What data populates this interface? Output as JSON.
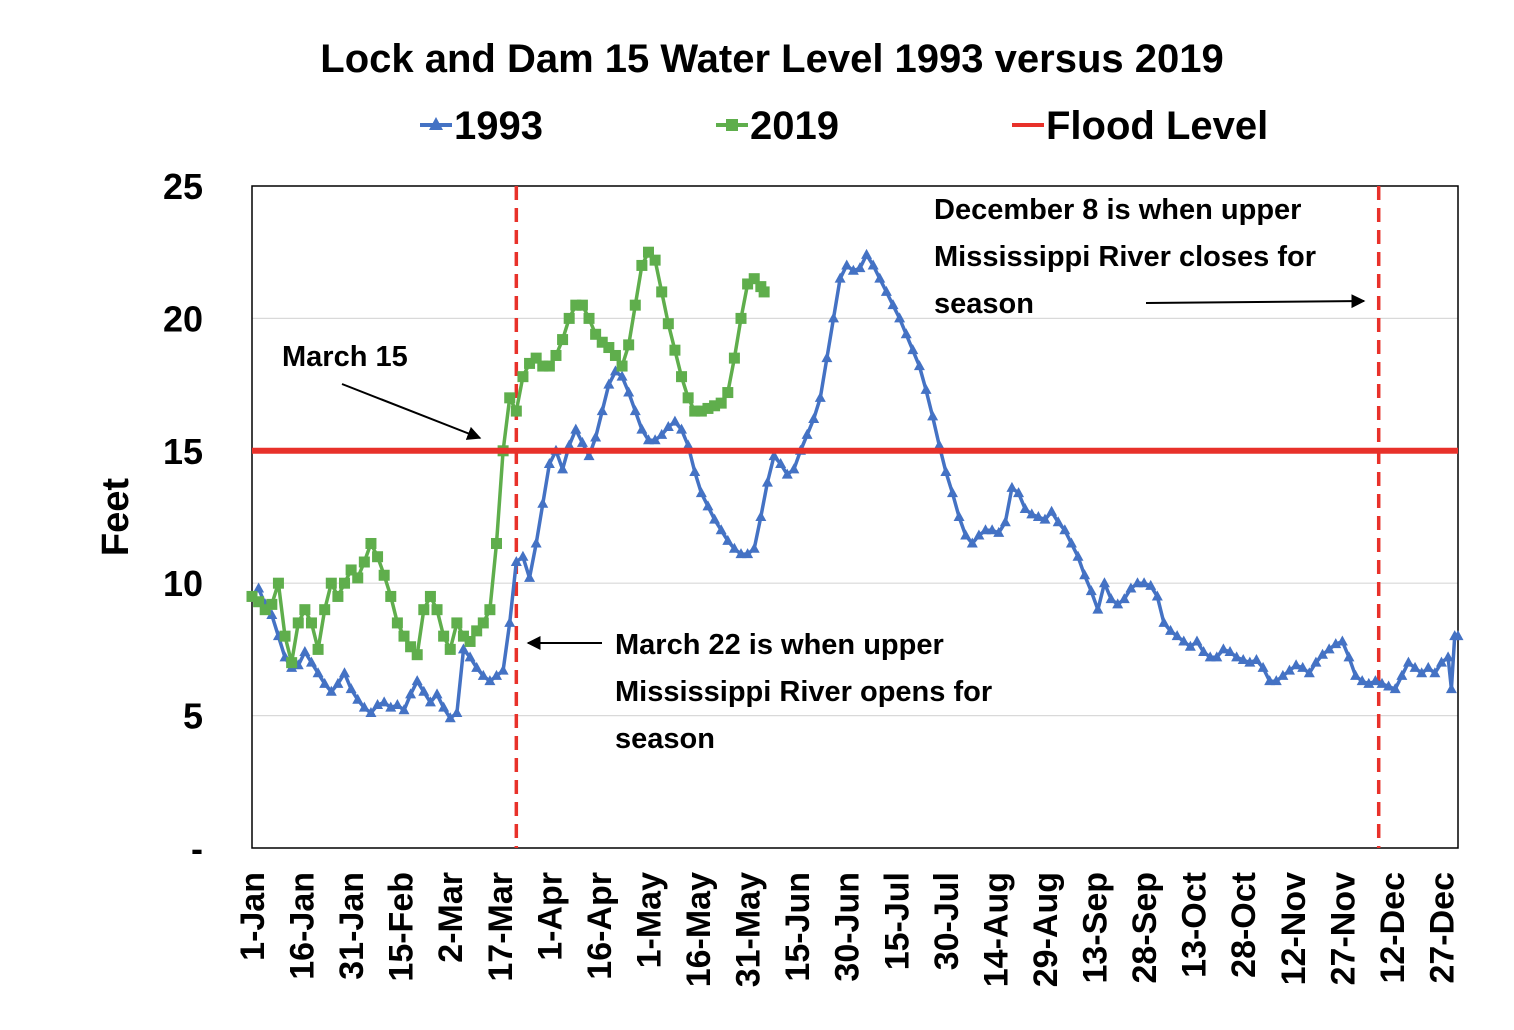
{
  "chart_data": {
    "type": "line",
    "title": "Lock and Dam 15 Water Level 1993 versus 2019",
    "ylabel": "Feet",
    "xlabel": "",
    "ylim": [
      0,
      25
    ],
    "yticks": [
      0,
      5,
      10,
      15,
      20,
      25
    ],
    "ytick_labels": [
      "-",
      "5",
      "10",
      "15",
      "20",
      "25"
    ],
    "xlim": [
      0,
      365
    ],
    "x_tick_days": [
      0,
      15,
      30,
      45,
      60,
      75,
      90,
      105,
      120,
      135,
      150,
      165,
      180,
      195,
      210,
      225,
      240,
      255,
      270,
      285,
      300,
      315,
      330,
      345,
      360
    ],
    "x_tick_labels": [
      "1-Jan",
      "16-Jan",
      "31-Jan",
      "15-Feb",
      "2-Mar",
      "17-Mar",
      "1-Apr",
      "16-Apr",
      "1-May",
      "16-May",
      "31-May",
      "15-Jun",
      "30-Jun",
      "15-Jul",
      "30-Jul",
      "14-Aug",
      "29-Aug",
      "13-Sep",
      "28-Sep",
      "13-Oct",
      "28-Oct",
      "12-Nov",
      "27-Nov",
      "12-Dec",
      "27-Dec"
    ],
    "grid": true,
    "legend_position": "top",
    "series": [
      {
        "name": "1993",
        "color": "#4472C4",
        "marker": "triangle",
        "points": [
          [
            0,
            9.5
          ],
          [
            2,
            9.8
          ],
          [
            4,
            9.2
          ],
          [
            6,
            8.8
          ],
          [
            8,
            8.0
          ],
          [
            10,
            7.2
          ],
          [
            12,
            6.8
          ],
          [
            14,
            6.9
          ],
          [
            16,
            7.4
          ],
          [
            18,
            7.0
          ],
          [
            20,
            6.6
          ],
          [
            22,
            6.2
          ],
          [
            24,
            5.9
          ],
          [
            26,
            6.2
          ],
          [
            28,
            6.6
          ],
          [
            30,
            6.0
          ],
          [
            32,
            5.6
          ],
          [
            34,
            5.3
          ],
          [
            36,
            5.1
          ],
          [
            38,
            5.4
          ],
          [
            40,
            5.5
          ],
          [
            42,
            5.3
          ],
          [
            44,
            5.4
          ],
          [
            46,
            5.2
          ],
          [
            48,
            5.8
          ],
          [
            50,
            6.3
          ],
          [
            52,
            5.9
          ],
          [
            54,
            5.5
          ],
          [
            56,
            5.8
          ],
          [
            58,
            5.3
          ],
          [
            60,
            4.9
          ],
          [
            62,
            5.1
          ],
          [
            64,
            7.5
          ],
          [
            66,
            7.2
          ],
          [
            68,
            6.8
          ],
          [
            70,
            6.5
          ],
          [
            72,
            6.3
          ],
          [
            74,
            6.5
          ],
          [
            76,
            6.7
          ],
          [
            78,
            8.5
          ],
          [
            80,
            10.8
          ],
          [
            82,
            11.0
          ],
          [
            84,
            10.2
          ],
          [
            86,
            11.5
          ],
          [
            88,
            13.0
          ],
          [
            90,
            14.5
          ],
          [
            92,
            15.0
          ],
          [
            94,
            14.3
          ],
          [
            96,
            15.2
          ],
          [
            98,
            15.8
          ],
          [
            100,
            15.3
          ],
          [
            102,
            14.8
          ],
          [
            104,
            15.5
          ],
          [
            106,
            16.5
          ],
          [
            108,
            17.5
          ],
          [
            110,
            18.0
          ],
          [
            112,
            17.8
          ],
          [
            114,
            17.2
          ],
          [
            116,
            16.5
          ],
          [
            118,
            15.8
          ],
          [
            120,
            15.4
          ],
          [
            122,
            15.4
          ],
          [
            124,
            15.6
          ],
          [
            126,
            15.9
          ],
          [
            128,
            16.1
          ],
          [
            130,
            15.8
          ],
          [
            132,
            15.2
          ],
          [
            134,
            14.2
          ],
          [
            136,
            13.4
          ],
          [
            138,
            12.9
          ],
          [
            140,
            12.4
          ],
          [
            142,
            12.0
          ],
          [
            144,
            11.6
          ],
          [
            146,
            11.3
          ],
          [
            148,
            11.1
          ],
          [
            150,
            11.1
          ],
          [
            152,
            11.3
          ],
          [
            154,
            12.5
          ],
          [
            156,
            13.8
          ],
          [
            158,
            14.8
          ],
          [
            160,
            14.5
          ],
          [
            162,
            14.1
          ],
          [
            164,
            14.3
          ],
          [
            166,
            15.0
          ],
          [
            168,
            15.6
          ],
          [
            170,
            16.2
          ],
          [
            172,
            17.0
          ],
          [
            174,
            18.5
          ],
          [
            176,
            20.0
          ],
          [
            178,
            21.5
          ],
          [
            180,
            22.0
          ],
          [
            182,
            21.8
          ],
          [
            184,
            21.9
          ],
          [
            186,
            22.4
          ],
          [
            188,
            22.0
          ],
          [
            190,
            21.5
          ],
          [
            192,
            21.0
          ],
          [
            194,
            20.5
          ],
          [
            196,
            20.0
          ],
          [
            198,
            19.4
          ],
          [
            200,
            18.8
          ],
          [
            202,
            18.2
          ],
          [
            204,
            17.3
          ],
          [
            206,
            16.3
          ],
          [
            208,
            15.2
          ],
          [
            210,
            14.2
          ],
          [
            212,
            13.4
          ],
          [
            214,
            12.5
          ],
          [
            216,
            11.8
          ],
          [
            218,
            11.5
          ],
          [
            220,
            11.8
          ],
          [
            222,
            12.0
          ],
          [
            224,
            12.0
          ],
          [
            226,
            11.9
          ],
          [
            228,
            12.3
          ],
          [
            230,
            13.6
          ],
          [
            232,
            13.4
          ],
          [
            234,
            12.8
          ],
          [
            236,
            12.6
          ],
          [
            238,
            12.5
          ],
          [
            240,
            12.4
          ],
          [
            242,
            12.7
          ],
          [
            244,
            12.3
          ],
          [
            246,
            12.0
          ],
          [
            248,
            11.5
          ],
          [
            250,
            11.0
          ],
          [
            252,
            10.3
          ],
          [
            254,
            9.7
          ],
          [
            256,
            9.0
          ],
          [
            258,
            10.0
          ],
          [
            260,
            9.4
          ],
          [
            262,
            9.2
          ],
          [
            264,
            9.4
          ],
          [
            266,
            9.8
          ],
          [
            268,
            10.0
          ],
          [
            270,
            10.0
          ],
          [
            272,
            9.9
          ],
          [
            274,
            9.5
          ],
          [
            276,
            8.5
          ],
          [
            278,
            8.2
          ],
          [
            280,
            8.0
          ],
          [
            282,
            7.8
          ],
          [
            284,
            7.6
          ],
          [
            286,
            7.8
          ],
          [
            288,
            7.4
          ],
          [
            290,
            7.2
          ],
          [
            292,
            7.2
          ],
          [
            294,
            7.5
          ],
          [
            296,
            7.4
          ],
          [
            298,
            7.2
          ],
          [
            300,
            7.1
          ],
          [
            302,
            7.0
          ],
          [
            304,
            7.1
          ],
          [
            306,
            6.8
          ],
          [
            308,
            6.3
          ],
          [
            310,
            6.3
          ],
          [
            312,
            6.5
          ],
          [
            314,
            6.7
          ],
          [
            316,
            6.9
          ],
          [
            318,
            6.8
          ],
          [
            320,
            6.6
          ],
          [
            322,
            7.0
          ],
          [
            324,
            7.3
          ],
          [
            326,
            7.5
          ],
          [
            328,
            7.7
          ],
          [
            330,
            7.8
          ],
          [
            332,
            7.2
          ],
          [
            334,
            6.5
          ],
          [
            336,
            6.3
          ],
          [
            338,
            6.2
          ],
          [
            340,
            6.3
          ],
          [
            342,
            6.2
          ],
          [
            344,
            6.1
          ],
          [
            346,
            6.0
          ],
          [
            348,
            6.5
          ],
          [
            350,
            7.0
          ],
          [
            352,
            6.8
          ],
          [
            354,
            6.6
          ],
          [
            356,
            6.8
          ],
          [
            358,
            6.6
          ],
          [
            360,
            7.0
          ],
          [
            362,
            7.2
          ],
          [
            363,
            6.0
          ],
          [
            364,
            8.0
          ],
          [
            365,
            8.0
          ]
        ]
      },
      {
        "name": "2019",
        "color": "#5FAE4C",
        "marker": "square",
        "points": [
          [
            0,
            9.5
          ],
          [
            2,
            9.3
          ],
          [
            4,
            9.0
          ],
          [
            6,
            9.2
          ],
          [
            8,
            10.0
          ],
          [
            10,
            8.0
          ],
          [
            12,
            7.0
          ],
          [
            14,
            8.5
          ],
          [
            16,
            9.0
          ],
          [
            18,
            8.5
          ],
          [
            20,
            7.5
          ],
          [
            22,
            9.0
          ],
          [
            24,
            10.0
          ],
          [
            26,
            9.5
          ],
          [
            28,
            10.0
          ],
          [
            30,
            10.5
          ],
          [
            32,
            10.2
          ],
          [
            34,
            10.8
          ],
          [
            36,
            11.5
          ],
          [
            38,
            11.0
          ],
          [
            40,
            10.3
          ],
          [
            42,
            9.5
          ],
          [
            44,
            8.5
          ],
          [
            46,
            8.0
          ],
          [
            48,
            7.6
          ],
          [
            50,
            7.3
          ],
          [
            52,
            9.0
          ],
          [
            54,
            9.5
          ],
          [
            56,
            9.0
          ],
          [
            58,
            8.0
          ],
          [
            60,
            7.5
          ],
          [
            62,
            8.5
          ],
          [
            64,
            8.0
          ],
          [
            66,
            7.8
          ],
          [
            68,
            8.2
          ],
          [
            70,
            8.5
          ],
          [
            72,
            9.0
          ],
          [
            74,
            11.5
          ],
          [
            76,
            15.0
          ],
          [
            78,
            17.0
          ],
          [
            80,
            16.5
          ],
          [
            82,
            17.8
          ],
          [
            84,
            18.3
          ],
          [
            86,
            18.5
          ],
          [
            88,
            18.2
          ],
          [
            90,
            18.2
          ],
          [
            92,
            18.6
          ],
          [
            94,
            19.2
          ],
          [
            96,
            20.0
          ],
          [
            98,
            20.5
          ],
          [
            100,
            20.5
          ],
          [
            102,
            20.0
          ],
          [
            104,
            19.4
          ],
          [
            106,
            19.1
          ],
          [
            108,
            18.9
          ],
          [
            110,
            18.6
          ],
          [
            112,
            18.2
          ],
          [
            114,
            19.0
          ],
          [
            116,
            20.5
          ],
          [
            118,
            22.0
          ],
          [
            120,
            22.5
          ],
          [
            122,
            22.2
          ],
          [
            124,
            21.0
          ],
          [
            126,
            19.8
          ],
          [
            128,
            18.8
          ],
          [
            130,
            17.8
          ],
          [
            132,
            17.0
          ],
          [
            134,
            16.5
          ],
          [
            136,
            16.5
          ],
          [
            138,
            16.6
          ],
          [
            140,
            16.7
          ],
          [
            142,
            16.8
          ],
          [
            144,
            17.2
          ],
          [
            146,
            18.5
          ],
          [
            148,
            20.0
          ],
          [
            150,
            21.3
          ],
          [
            152,
            21.5
          ],
          [
            154,
            21.2
          ],
          [
            155,
            21.0
          ]
        ]
      },
      {
        "name": "Flood Level",
        "color": "#E8312A",
        "marker": "none",
        "value": 15
      }
    ],
    "reference_lines": [
      {
        "name": "march-22-line",
        "x": 80,
        "color": "#E8312A",
        "style": "dashed"
      },
      {
        "name": "december-8-line",
        "x": 341,
        "color": "#E8312A",
        "style": "dashed"
      }
    ],
    "annotations": [
      {
        "name": "march-15-annotation",
        "lines": [
          "March 15"
        ]
      },
      {
        "name": "march-22-annotation",
        "lines": [
          "March 22 is when upper",
          "Mississippi River opens for",
          "season"
        ]
      },
      {
        "name": "december-8-annotation",
        "lines": [
          "December 8 is when upper",
          "Mississippi River closes for",
          "season"
        ]
      }
    ]
  }
}
